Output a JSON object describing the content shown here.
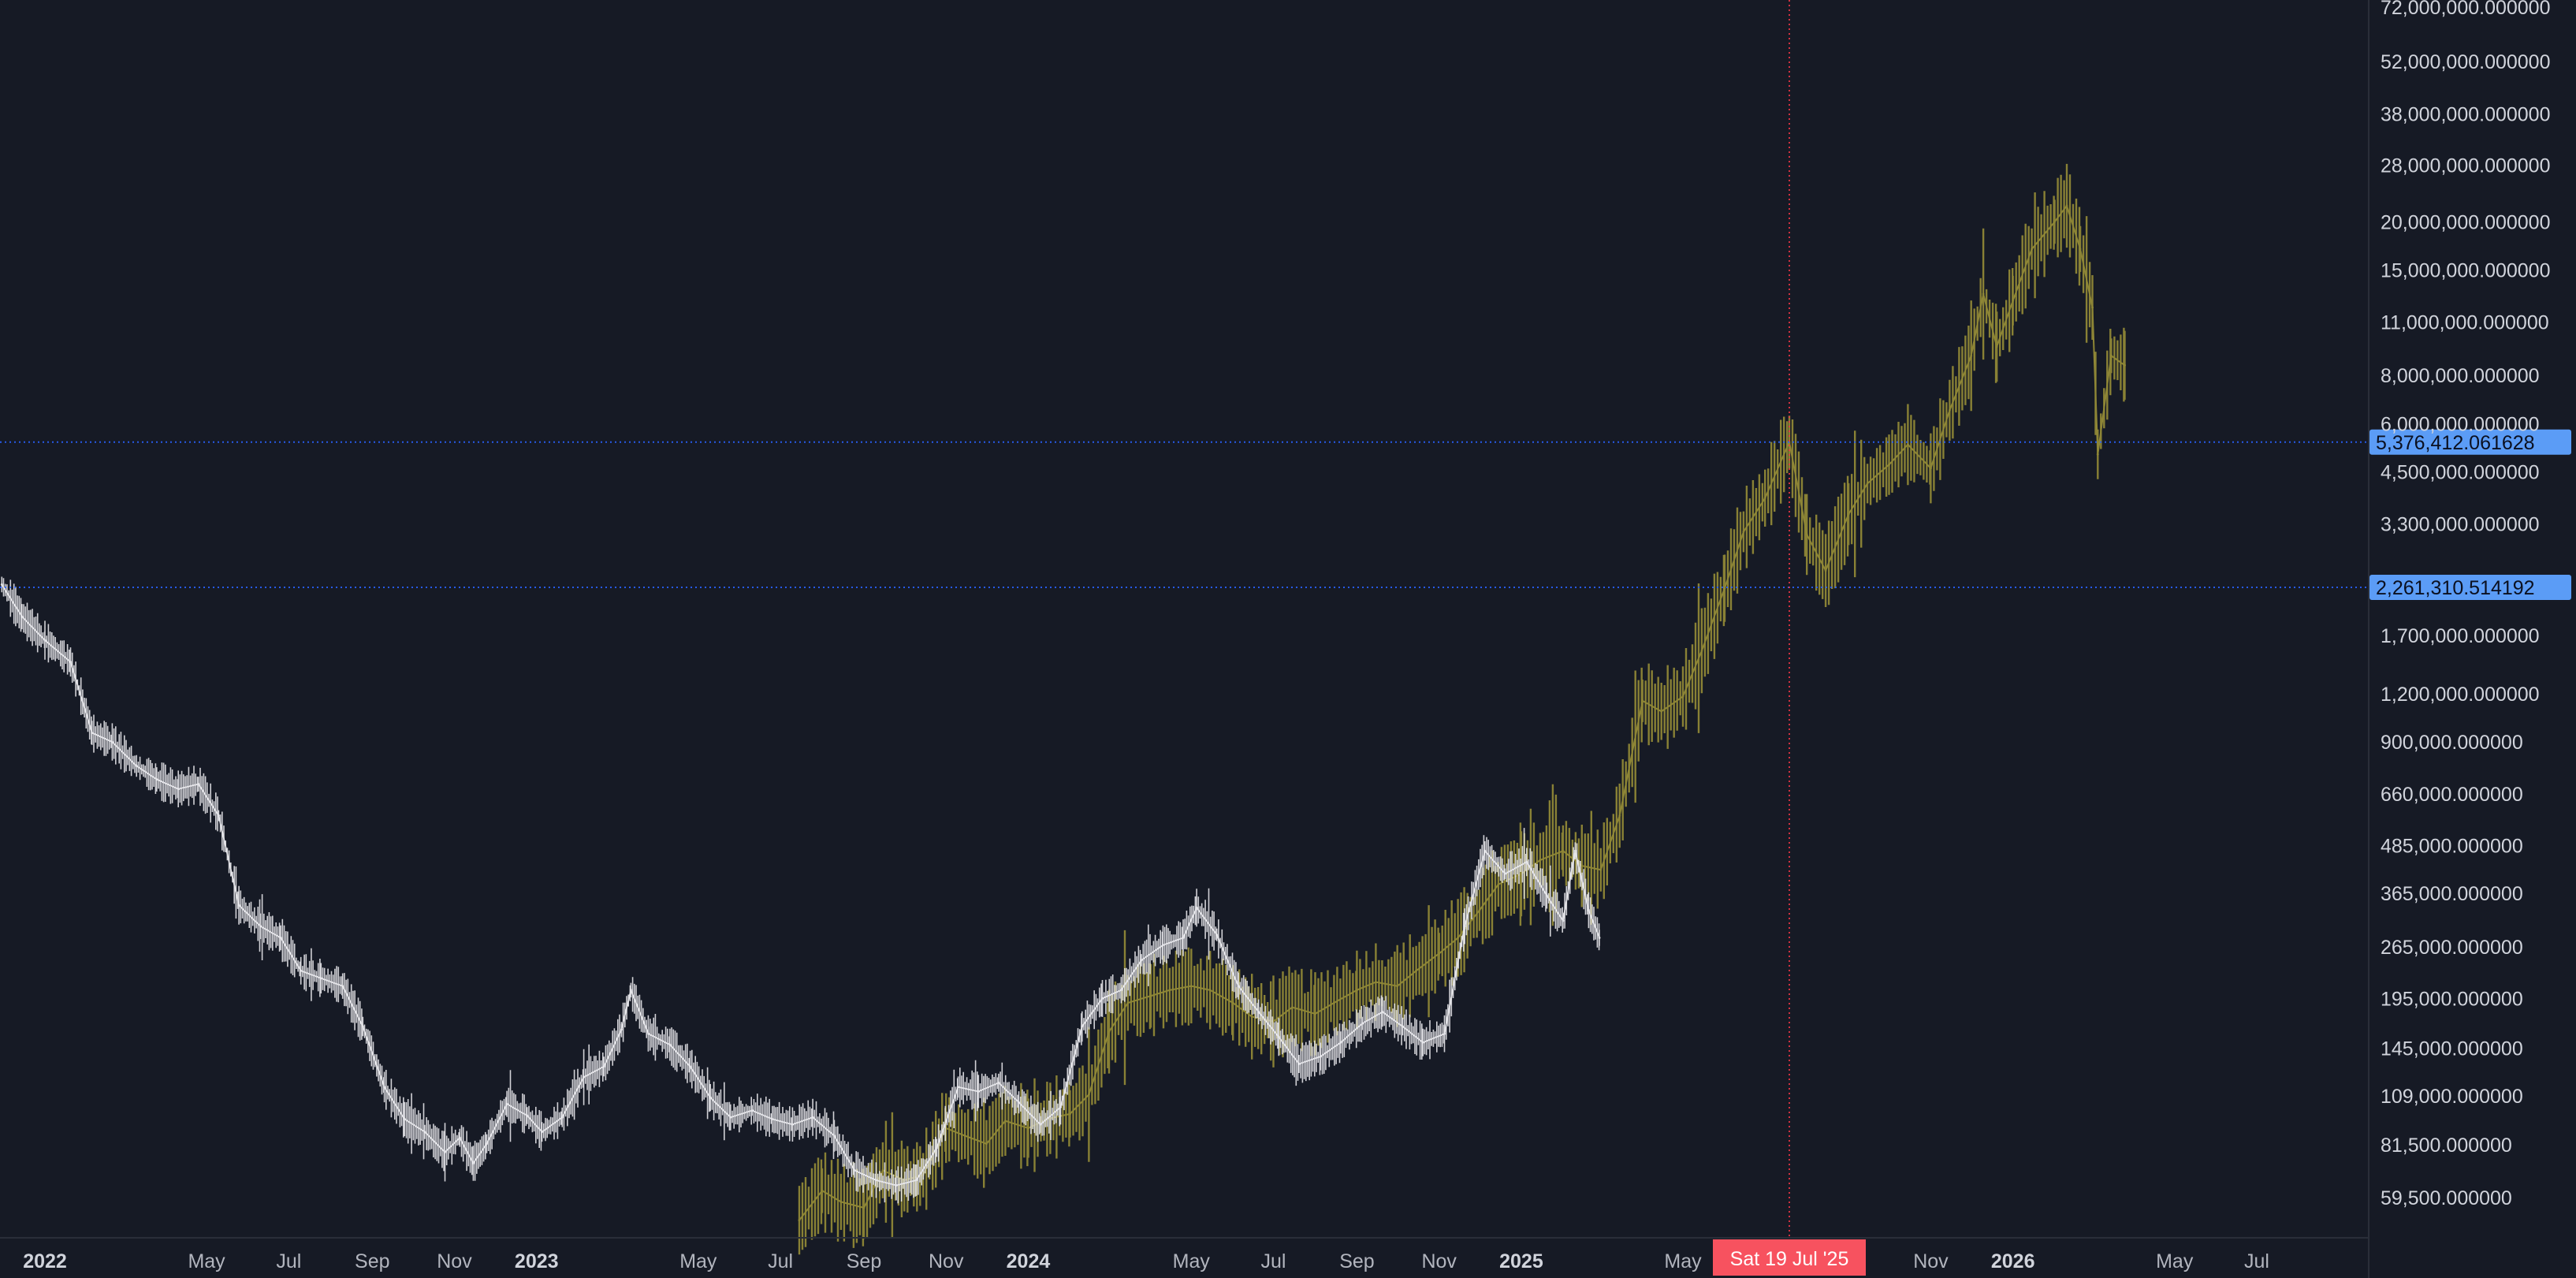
{
  "chart_data": {
    "type": "line",
    "scale": "log",
    "grid": false,
    "colors": {
      "background": "#161a25",
      "series_primary": "#e6e6ea",
      "series_overlay": "#8f8736",
      "price_line": "#2962ff",
      "price_badge": "#5b9cf6",
      "crosshair": "#f23645",
      "crosshair_badge": "#f7525f",
      "axis_text": "#d1d4dc"
    },
    "ylim": [
      50000,
      75000000
    ],
    "y_ticks": [
      {
        "value": 72000000,
        "label": "72,000,000.000000"
      },
      {
        "value": 52000000,
        "label": "52,000,000.000000"
      },
      {
        "value": 38000000,
        "label": "38,000,000.000000"
      },
      {
        "value": 28000000,
        "label": "28,000,000.000000"
      },
      {
        "value": 20000000,
        "label": "20,000,000.000000"
      },
      {
        "value": 15000000,
        "label": "15,000,000.000000"
      },
      {
        "value": 11000000,
        "label": "11,000,000.000000"
      },
      {
        "value": 8000000,
        "label": "8,000,000.000000"
      },
      {
        "value": 6000000,
        "label": "6,000,000.000000"
      },
      {
        "value": 4500000,
        "label": "4,500,000.000000"
      },
      {
        "value": 3300000,
        "label": "3,300,000.000000"
      },
      {
        "value": 1700000,
        "label": "1,700,000.000000"
      },
      {
        "value": 1200000,
        "label": "1,200,000.000000"
      },
      {
        "value": 900000,
        "label": "900,000.000000"
      },
      {
        "value": 660000,
        "label": "660,000.000000"
      },
      {
        "value": 485000,
        "label": "485,000.000000"
      },
      {
        "value": 365000,
        "label": "365,000.000000"
      },
      {
        "value": 265000,
        "label": "265,000.000000"
      },
      {
        "value": 195000,
        "label": "195,000.000000"
      },
      {
        "value": 145000,
        "label": "145,000.000000"
      },
      {
        "value": 109000,
        "label": "109,000.000000"
      },
      {
        "value": 81500,
        "label": "81,500.000000"
      },
      {
        "value": 59500,
        "label": "59,500.000000"
      }
    ],
    "x_ticks": [
      {
        "date": "2022-01-01",
        "label": "2022",
        "year": true
      },
      {
        "date": "2022-05-01",
        "label": "May"
      },
      {
        "date": "2022-07-01",
        "label": "Jul"
      },
      {
        "date": "2022-09-01",
        "label": "Sep"
      },
      {
        "date": "2022-11-01",
        "label": "Nov"
      },
      {
        "date": "2023-01-01",
        "label": "2023",
        "year": true
      },
      {
        "date": "2023-05-01",
        "label": "May"
      },
      {
        "date": "2023-07-01",
        "label": "Jul"
      },
      {
        "date": "2023-09-01",
        "label": "Sep"
      },
      {
        "date": "2023-11-01",
        "label": "Nov"
      },
      {
        "date": "2024-01-01",
        "label": "2024",
        "year": true
      },
      {
        "date": "2024-05-01",
        "label": "May"
      },
      {
        "date": "2024-07-01",
        "label": "Jul"
      },
      {
        "date": "2024-09-01",
        "label": "Sep"
      },
      {
        "date": "2024-11-01",
        "label": "Nov"
      },
      {
        "date": "2025-01-01",
        "label": "2025",
        "year": true
      },
      {
        "date": "2025-05-01",
        "label": "May"
      },
      {
        "date": "2025-11-01",
        "label": "Nov"
      },
      {
        "date": "2026-01-01",
        "label": "2026",
        "year": true
      },
      {
        "date": "2026-05-01",
        "label": "May"
      },
      {
        "date": "2026-07-01",
        "label": "Jul"
      }
    ],
    "crosshair": {
      "date": "2025-07-19",
      "label": "Sat 19 Jul '25"
    },
    "price_lines": [
      {
        "value": 5376412.061628,
        "label": "5,376,412.061628"
      },
      {
        "value": 2261310.514192,
        "label": "2,261,310.514192"
      }
    ],
    "series": [
      {
        "style": "primary",
        "points": [
          [
            "2021-11-30",
            2300000
          ],
          [
            "2021-12-15",
            1900000
          ],
          [
            "2022-01-01",
            1650000
          ],
          [
            "2022-01-20",
            1450000
          ],
          [
            "2022-02-05",
            950000
          ],
          [
            "2022-02-20",
            900000
          ],
          [
            "2022-03-10",
            780000
          ],
          [
            "2022-03-25",
            720000
          ],
          [
            "2022-04-10",
            680000
          ],
          [
            "2022-04-25",
            700000
          ],
          [
            "2022-05-10",
            580000
          ],
          [
            "2022-05-25",
            340000
          ],
          [
            "2022-06-10",
            300000
          ],
          [
            "2022-06-25",
            280000
          ],
          [
            "2022-07-10",
            230000
          ],
          [
            "2022-07-25",
            220000
          ],
          [
            "2022-08-10",
            210000
          ],
          [
            "2022-08-25",
            165000
          ],
          [
            "2022-09-10",
            115000
          ],
          [
            "2022-09-25",
            95000
          ],
          [
            "2022-10-10",
            88000
          ],
          [
            "2022-10-25",
            78000
          ],
          [
            "2022-11-05",
            85000
          ],
          [
            "2022-11-15",
            73000
          ],
          [
            "2022-11-25",
            82000
          ],
          [
            "2022-12-10",
            104000
          ],
          [
            "2022-12-25",
            97000
          ],
          [
            "2023-01-05",
            88000
          ],
          [
            "2023-01-20",
            96000
          ],
          [
            "2023-02-05",
            122000
          ],
          [
            "2023-02-20",
            130000
          ],
          [
            "2023-03-05",
            162000
          ],
          [
            "2023-03-12",
            205000
          ],
          [
            "2023-03-25",
            158000
          ],
          [
            "2023-04-10",
            148000
          ],
          [
            "2023-04-25",
            130000
          ],
          [
            "2023-05-10",
            108000
          ],
          [
            "2023-05-25",
            96000
          ],
          [
            "2023-06-10",
            100000
          ],
          [
            "2023-06-25",
            95000
          ],
          [
            "2023-07-10",
            92000
          ],
          [
            "2023-07-25",
            96000
          ],
          [
            "2023-08-10",
            86000
          ],
          [
            "2023-08-25",
            70000
          ],
          [
            "2023-09-10",
            66000
          ],
          [
            "2023-09-25",
            64000
          ],
          [
            "2023-10-10",
            66000
          ],
          [
            "2023-10-25",
            80000
          ],
          [
            "2023-11-10",
            115000
          ],
          [
            "2023-11-25",
            112000
          ],
          [
            "2023-12-10",
            118000
          ],
          [
            "2023-12-25",
            105000
          ],
          [
            "2024-01-10",
            92000
          ],
          [
            "2024-01-25",
            102000
          ],
          [
            "2024-02-10",
            165000
          ],
          [
            "2024-02-25",
            195000
          ],
          [
            "2024-03-10",
            205000
          ],
          [
            "2024-03-25",
            245000
          ],
          [
            "2024-04-10",
            268000
          ],
          [
            "2024-04-25",
            280000
          ],
          [
            "2024-05-05",
            335000
          ],
          [
            "2024-05-20",
            285000
          ],
          [
            "2024-06-05",
            210000
          ],
          [
            "2024-06-20",
            180000
          ],
          [
            "2024-07-05",
            155000
          ],
          [
            "2024-07-20",
            132000
          ],
          [
            "2024-08-05",
            138000
          ],
          [
            "2024-08-20",
            150000
          ],
          [
            "2024-09-05",
            168000
          ],
          [
            "2024-09-20",
            180000
          ],
          [
            "2024-10-05",
            165000
          ],
          [
            "2024-10-20",
            150000
          ],
          [
            "2024-11-05",
            158000
          ],
          [
            "2024-11-20",
            300000
          ],
          [
            "2024-12-05",
            470000
          ],
          [
            "2024-12-20",
            410000
          ],
          [
            "2025-01-05",
            440000
          ],
          [
            "2025-01-20",
            360000
          ],
          [
            "2025-02-01",
            310000
          ],
          [
            "2025-02-10",
            470000
          ],
          [
            "2025-02-20",
            330000
          ],
          [
            "2025-02-28",
            280000
          ]
        ]
      },
      {
        "style": "overlay",
        "points": [
          [
            "2023-07-15",
            52000
          ],
          [
            "2023-08-01",
            62000
          ],
          [
            "2023-08-15",
            58000
          ],
          [
            "2023-09-01",
            56000
          ],
          [
            "2023-09-15",
            70000
          ],
          [
            "2023-10-01",
            66000
          ],
          [
            "2023-10-15",
            68000
          ],
          [
            "2023-11-01",
            90000
          ],
          [
            "2023-11-15",
            86000
          ],
          [
            "2023-12-01",
            82000
          ],
          [
            "2023-12-15",
            94000
          ],
          [
            "2024-01-01",
            90000
          ],
          [
            "2024-01-15",
            95000
          ],
          [
            "2024-02-01",
            98000
          ],
          [
            "2024-02-15",
            110000
          ],
          [
            "2024-03-01",
            160000
          ],
          [
            "2024-03-15",
            190000
          ],
          [
            "2024-04-01",
            198000
          ],
          [
            "2024-04-15",
            205000
          ],
          [
            "2024-05-01",
            210000
          ],
          [
            "2024-05-15",
            205000
          ],
          [
            "2024-06-01",
            190000
          ],
          [
            "2024-06-15",
            175000
          ],
          [
            "2024-07-01",
            170000
          ],
          [
            "2024-07-15",
            185000
          ],
          [
            "2024-08-01",
            178000
          ],
          [
            "2024-08-15",
            190000
          ],
          [
            "2024-09-01",
            205000
          ],
          [
            "2024-09-15",
            215000
          ],
          [
            "2024-10-01",
            210000
          ],
          [
            "2024-10-15",
            230000
          ],
          [
            "2024-11-01",
            255000
          ],
          [
            "2024-11-15",
            280000
          ],
          [
            "2024-12-01",
            330000
          ],
          [
            "2024-12-15",
            385000
          ],
          [
            "2025-01-01",
            410000
          ],
          [
            "2025-01-15",
            445000
          ],
          [
            "2025-02-01",
            470000
          ],
          [
            "2025-02-15",
            430000
          ],
          [
            "2025-03-01",
            420000
          ],
          [
            "2025-03-15",
            580000
          ],
          [
            "2025-04-01",
            1150000
          ],
          [
            "2025-04-15",
            1080000
          ],
          [
            "2025-05-01",
            1180000
          ],
          [
            "2025-05-15",
            1550000
          ],
          [
            "2025-06-01",
            2250000
          ],
          [
            "2025-06-15",
            3150000
          ],
          [
            "2025-07-01",
            3850000
          ],
          [
            "2025-07-19",
            5376412
          ],
          [
            "2025-08-01",
            3100000
          ],
          [
            "2025-08-15",
            2500000
          ],
          [
            "2025-09-01",
            3500000
          ],
          [
            "2025-09-15",
            4200000
          ],
          [
            "2025-10-01",
            4700000
          ],
          [
            "2025-10-15",
            5300000
          ],
          [
            "2025-11-01",
            4600000
          ],
          [
            "2025-11-15",
            6500000
          ],
          [
            "2025-12-01",
            9000000
          ],
          [
            "2025-12-10",
            13000000
          ],
          [
            "2025-12-20",
            9500000
          ],
          [
            "2026-01-01",
            12500000
          ],
          [
            "2026-01-15",
            17000000
          ],
          [
            "2026-02-01",
            20000000
          ],
          [
            "2026-02-10",
            22000000
          ],
          [
            "2026-02-20",
            17000000
          ],
          [
            "2026-03-01",
            12000000
          ],
          [
            "2026-03-05",
            5000000
          ],
          [
            "2026-03-15",
            9000000
          ],
          [
            "2026-03-25",
            8500000
          ]
        ]
      }
    ]
  }
}
